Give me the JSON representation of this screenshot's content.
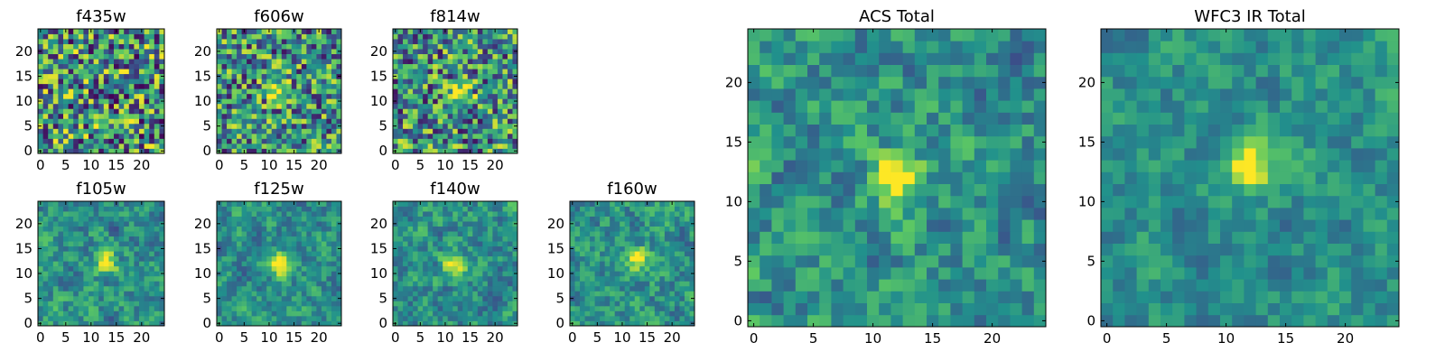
{
  "figure": {
    "background": "#ffffff",
    "colormap": "viridis",
    "colormap_stops": [
      "#440154",
      "#3b528b",
      "#21918c",
      "#5ec962",
      "#fde725"
    ]
  },
  "chart_data": [
    {
      "id": "f435w",
      "type": "heatmap",
      "title": "f435w",
      "xticks": [
        0,
        5,
        10,
        15,
        20
      ],
      "yticks": [
        0,
        5,
        10,
        15,
        20
      ],
      "xlim": [
        0,
        24
      ],
      "ylim": [
        0,
        24
      ],
      "grid": false,
      "source_peak": null,
      "noise": 0.9
    },
    {
      "id": "f606w",
      "type": "heatmap",
      "title": "f606w",
      "xticks": [
        0,
        5,
        10,
        15,
        20
      ],
      "yticks": [
        0,
        5,
        10,
        15,
        20
      ],
      "xlim": [
        0,
        24
      ],
      "ylim": [
        0,
        24
      ],
      "grid": false,
      "source_peak": [
        12,
        12
      ],
      "noise": 0.8
    },
    {
      "id": "f814w",
      "type": "heatmap",
      "title": "f814w",
      "xticks": [
        0,
        5,
        10,
        15,
        20
      ],
      "yticks": [
        0,
        5,
        10,
        15,
        20
      ],
      "xlim": [
        0,
        24
      ],
      "ylim": [
        0,
        24
      ],
      "grid": false,
      "source_peak": [
        13,
        12
      ],
      "noise": 0.8
    },
    {
      "id": "f105w",
      "type": "heatmap",
      "title": "f105w",
      "xticks": [
        0,
        5,
        10,
        15,
        20
      ],
      "yticks": [
        0,
        5,
        10,
        15,
        20
      ],
      "xlim": [
        0,
        24
      ],
      "ylim": [
        0,
        24
      ],
      "grid": false,
      "source_peak": [
        13,
        12
      ],
      "noise": 0.6
    },
    {
      "id": "f125w",
      "type": "heatmap",
      "title": "f125w",
      "xticks": [
        0,
        5,
        10,
        15,
        20
      ],
      "yticks": [
        0,
        5,
        10,
        15,
        20
      ],
      "xlim": [
        0,
        24
      ],
      "ylim": [
        0,
        24
      ],
      "grid": false,
      "source_peak": [
        12,
        12
      ],
      "noise": 0.55
    },
    {
      "id": "f140w",
      "type": "heatmap",
      "title": "f140w",
      "xticks": [
        0,
        5,
        10,
        15,
        20
      ],
      "yticks": [
        0,
        5,
        10,
        15,
        20
      ],
      "xlim": [
        0,
        24
      ],
      "ylim": [
        0,
        24
      ],
      "grid": false,
      "source_peak": [
        12,
        12
      ],
      "noise": 0.6
    },
    {
      "id": "f160w",
      "type": "heatmap",
      "title": "f160w",
      "xticks": [
        0,
        5,
        10,
        15,
        20
      ],
      "yticks": [
        0,
        5,
        10,
        15,
        20
      ],
      "xlim": [
        0,
        24
      ],
      "ylim": [
        0,
        24
      ],
      "grid": false,
      "source_peak": [
        13,
        13
      ],
      "noise": 0.6
    },
    {
      "id": "acs-total",
      "type": "heatmap",
      "title": "ACS Total",
      "xticks": [
        0,
        5,
        10,
        15,
        20
      ],
      "yticks": [
        0,
        5,
        10,
        15,
        20
      ],
      "xlim": [
        0,
        24
      ],
      "ylim": [
        0,
        24
      ],
      "grid": false,
      "source_peak": [
        12,
        12
      ],
      "noise": 0.65
    },
    {
      "id": "wfc3-ir-total",
      "type": "heatmap",
      "title": "WFC3 IR Total",
      "xticks": [
        0,
        5,
        10,
        15,
        20
      ],
      "yticks": [
        0,
        5,
        10,
        15,
        20
      ],
      "xlim": [
        0,
        24
      ],
      "ylim": [
        0,
        24
      ],
      "grid": false,
      "source_peak": [
        12,
        13
      ],
      "noise": 0.45
    }
  ]
}
